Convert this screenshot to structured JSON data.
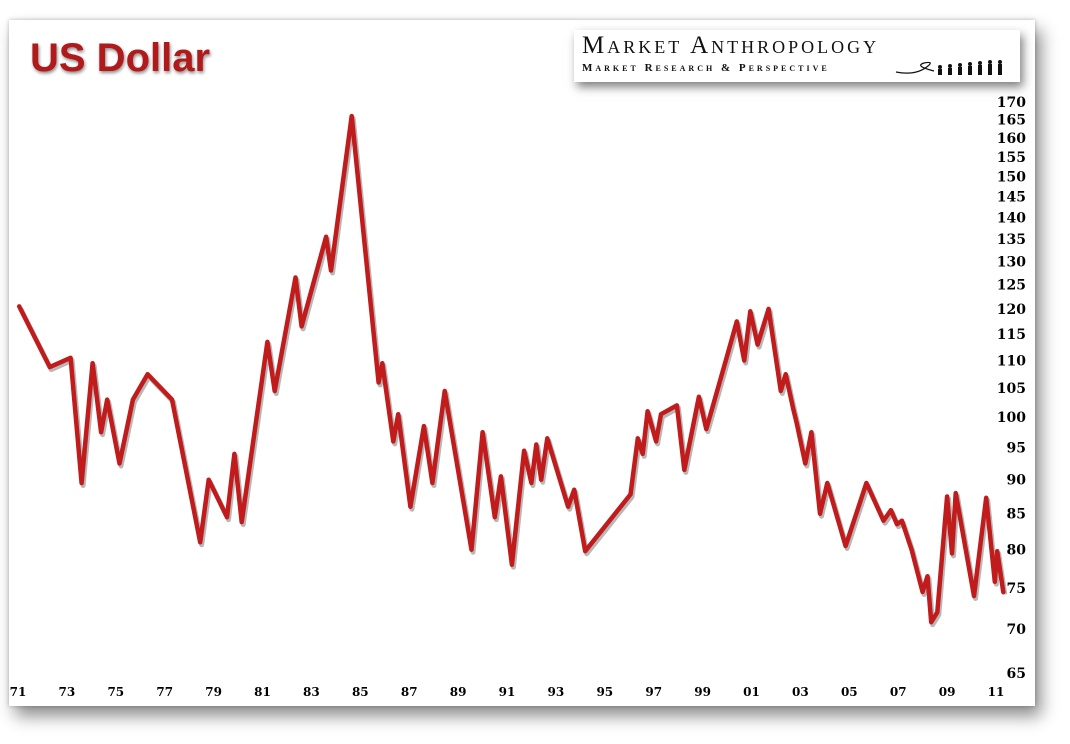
{
  "title": "US Dollar",
  "logo": {
    "line1": "Market Anthropology",
    "line2": "Market Research & Perspective",
    "icon": "evolution-figures-icon"
  },
  "colors": {
    "series": "#c21b1b",
    "title": "#b01a1a"
  },
  "chart_data": {
    "type": "line",
    "title": "US Dollar",
    "xlabel": "",
    "ylabel": "",
    "yscale": "log",
    "ylim": [
      63,
      172
    ],
    "xlim": [
      1971,
      2011.3
    ],
    "grid": false,
    "legend": "none",
    "x_tick_labels": [
      "71",
      "73",
      "75",
      "77",
      "79",
      "81",
      "83",
      "85",
      "87",
      "89",
      "91",
      "93",
      "95",
      "97",
      "99",
      "01",
      "03",
      "05",
      "07",
      "09",
      "11"
    ],
    "x_tick_values": [
      1971,
      1973,
      1975,
      1977,
      1979,
      1981,
      1983,
      1985,
      1987,
      1989,
      1991,
      1993,
      1995,
      1997,
      1999,
      2001,
      2003,
      2005,
      2007,
      2009,
      2011
    ],
    "y_ticks": [
      65,
      70,
      75,
      80,
      85,
      90,
      95,
      100,
      105,
      110,
      115,
      120,
      125,
      130,
      135,
      140,
      145,
      150,
      155,
      160,
      165,
      170
    ],
    "series": [
      {
        "values": [
          [
            1971.05,
            120.5
          ],
          [
            1972.3,
            108.8
          ],
          [
            1973.15,
            110.5
          ],
          [
            1973.6,
            89.5
          ],
          [
            1974.05,
            109.5
          ],
          [
            1974.4,
            97.5
          ],
          [
            1974.65,
            103
          ],
          [
            1975.15,
            92.5
          ],
          [
            1975.7,
            103
          ],
          [
            1976.3,
            107.5
          ],
          [
            1977.3,
            103
          ],
          [
            1978.45,
            81
          ],
          [
            1978.8,
            90
          ],
          [
            1979.55,
            84.5
          ],
          [
            1979.85,
            94
          ],
          [
            1980.15,
            83.8
          ],
          [
            1981.2,
            113.5
          ],
          [
            1981.5,
            104.5
          ],
          [
            1982.35,
            126.5
          ],
          [
            1982.6,
            116.5
          ],
          [
            1983.6,
            135.5
          ],
          [
            1983.8,
            128
          ],
          [
            1984.65,
            166
          ],
          [
            1985.75,
            106
          ],
          [
            1985.9,
            109.5
          ],
          [
            1986.35,
            96
          ],
          [
            1986.55,
            100.5
          ],
          [
            1987.05,
            86
          ],
          [
            1987.6,
            98.5
          ],
          [
            1987.95,
            89.5
          ],
          [
            1988.45,
            104.5
          ],
          [
            1989.55,
            80
          ],
          [
            1990.0,
            97.5
          ],
          [
            1990.5,
            84.5
          ],
          [
            1990.75,
            90.5
          ],
          [
            1991.2,
            78
          ],
          [
            1991.7,
            94.5
          ],
          [
            1992.0,
            89.5
          ],
          [
            1992.2,
            95.5
          ],
          [
            1992.4,
            90
          ],
          [
            1992.65,
            96.5
          ],
          [
            1993.5,
            86
          ],
          [
            1993.75,
            88.5
          ],
          [
            1994.2,
            79.8
          ],
          [
            1996.05,
            87.8
          ],
          [
            1996.35,
            96.5
          ],
          [
            1996.55,
            94
          ],
          [
            1996.75,
            101
          ],
          [
            1997.1,
            96
          ],
          [
            1997.3,
            100.5
          ],
          [
            1997.95,
            102
          ],
          [
            1998.25,
            91.5
          ],
          [
            1998.85,
            103.5
          ],
          [
            1999.15,
            98
          ],
          [
            1999.95,
            110
          ],
          [
            2000.4,
            117.5
          ],
          [
            2000.7,
            110
          ],
          [
            2000.95,
            119.5
          ],
          [
            2001.25,
            113
          ],
          [
            2001.7,
            120
          ],
          [
            2002.2,
            104.5
          ],
          [
            2002.4,
            107.5
          ],
          [
            2002.7,
            101.5
          ],
          [
            2002.85,
            99
          ],
          [
            2003.2,
            92.5
          ],
          [
            2003.45,
            97.5
          ],
          [
            2003.8,
            85
          ],
          [
            2004.1,
            89.5
          ],
          [
            2004.85,
            80.5
          ],
          [
            2005.7,
            89.5
          ],
          [
            2006.4,
            84
          ],
          [
            2006.7,
            85.5
          ],
          [
            2006.95,
            83.5
          ],
          [
            2007.15,
            84
          ],
          [
            2007.55,
            80
          ],
          [
            2008.0,
            74.5
          ],
          [
            2008.2,
            76.5
          ],
          [
            2008.35,
            70.8
          ],
          [
            2008.6,
            72
          ],
          [
            2009.0,
            87.5
          ],
          [
            2009.2,
            79.5
          ],
          [
            2009.35,
            88
          ],
          [
            2010.1,
            74
          ],
          [
            2010.6,
            87.3
          ],
          [
            2010.95,
            75.8
          ],
          [
            2011.05,
            79.8
          ],
          [
            2011.3,
            74.5
          ]
        ]
      }
    ]
  }
}
